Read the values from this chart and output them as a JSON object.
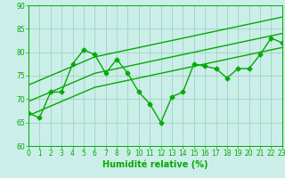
{
  "x": [
    0,
    1,
    2,
    3,
    4,
    5,
    6,
    7,
    8,
    9,
    10,
    11,
    12,
    13,
    14,
    15,
    16,
    17,
    18,
    19,
    20,
    21,
    22,
    23
  ],
  "main_line": [
    67,
    66,
    71.5,
    71.5,
    77.5,
    80.5,
    79.5,
    75.5,
    78.5,
    75.5,
    71.5,
    69,
    65,
    70.5,
    71.5,
    77.5,
    77,
    76.5,
    74.5,
    76.5,
    76.5,
    79.5,
    83,
    82
  ],
  "trend1": [
    66.5,
    67.5,
    68.5,
    69.5,
    70.5,
    71.5,
    72.5,
    73.0,
    73.5,
    74.0,
    74.5,
    75.0,
    75.5,
    76.0,
    76.5,
    77.0,
    77.5,
    78.0,
    78.5,
    79.0,
    79.5,
    80.0,
    80.5,
    81.0
  ],
  "trend2": [
    69.5,
    70.5,
    71.5,
    72.5,
    73.5,
    74.5,
    75.5,
    76.0,
    76.5,
    77.0,
    77.5,
    78.0,
    78.5,
    79.0,
    79.5,
    80.0,
    80.5,
    81.0,
    81.5,
    82.0,
    82.5,
    83.0,
    83.5,
    84.0
  ],
  "trend3": [
    73.0,
    74.0,
    75.0,
    76.0,
    77.0,
    78.0,
    79.0,
    79.5,
    80.0,
    80.5,
    81.0,
    81.5,
    82.0,
    82.5,
    83.0,
    83.5,
    84.0,
    84.5,
    85.0,
    85.5,
    86.0,
    86.5,
    87.0,
    87.5
  ],
  "xlim": [
    0,
    23
  ],
  "ylim": [
    60,
    90
  ],
  "yticks": [
    60,
    65,
    70,
    75,
    80,
    85,
    90
  ],
  "xticks": [
    0,
    1,
    2,
    3,
    4,
    5,
    6,
    7,
    8,
    9,
    10,
    11,
    12,
    13,
    14,
    15,
    16,
    17,
    18,
    19,
    20,
    21,
    22,
    23
  ],
  "xlabel": "Humidité relative (%)",
  "line_color": "#00aa00",
  "bg_color": "#cceee8",
  "grid_color": "#99ccbb",
  "marker": "D",
  "marker_size": 2.5,
  "line_width": 1.0,
  "xlabel_fontsize": 7,
  "tick_fontsize": 5.5
}
